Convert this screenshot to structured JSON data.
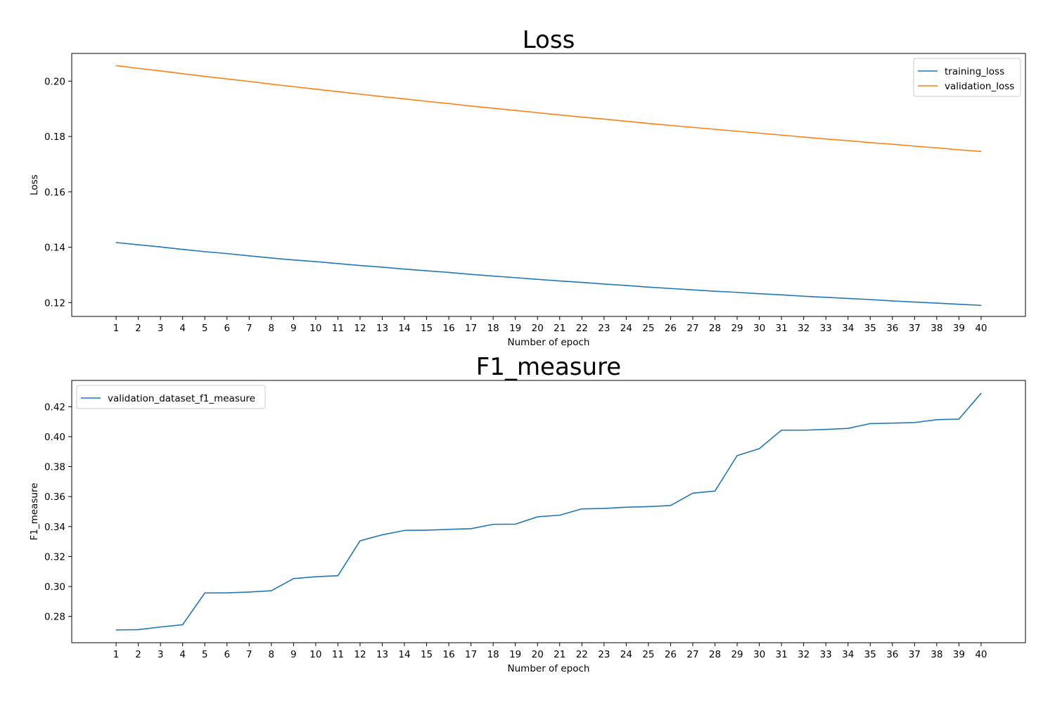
{
  "chart_data": [
    {
      "type": "line",
      "title": "Loss",
      "xlabel": "Number of epoch",
      "ylabel": "Loss",
      "x": [
        1,
        2,
        3,
        4,
        5,
        6,
        7,
        8,
        9,
        10,
        11,
        12,
        13,
        14,
        15,
        16,
        17,
        18,
        19,
        20,
        21,
        22,
        23,
        24,
        25,
        26,
        27,
        28,
        29,
        30,
        31,
        32,
        33,
        34,
        35,
        36,
        37,
        38,
        39,
        40
      ],
      "xlim": [
        -1.0,
        42.0
      ],
      "ylim": [
        0.115,
        0.21
      ],
      "yticks": [
        0.12,
        0.14,
        0.16,
        0.18,
        0.2
      ],
      "ytick_labels": [
        "0.12",
        "0.14",
        "0.16",
        "0.18",
        "0.20"
      ],
      "grid": false,
      "legend_position": "top-right",
      "series": [
        {
          "name": "training_loss",
          "color": "#1f77b4",
          "values": [
            0.1417,
            0.1409,
            0.1401,
            0.1392,
            0.1384,
            0.1377,
            0.1369,
            0.1361,
            0.1354,
            0.1348,
            0.1341,
            0.1334,
            0.1328,
            0.1321,
            0.1315,
            0.1309,
            0.1302,
            0.1296,
            0.129,
            0.1284,
            0.1278,
            0.1273,
            0.1267,
            0.1262,
            0.1256,
            0.1251,
            0.1246,
            0.1241,
            0.1237,
            0.1232,
            0.1228,
            0.1223,
            0.1219,
            0.1215,
            0.1211,
            0.1206,
            0.1202,
            0.1198,
            0.1194,
            0.119
          ]
        },
        {
          "name": "validation_loss",
          "color": "#ff7f0e",
          "values": [
            0.2056,
            0.2046,
            0.2037,
            0.2027,
            0.2017,
            0.2008,
            0.1999,
            0.1989,
            0.198,
            0.1971,
            0.1962,
            0.1953,
            0.1944,
            0.1936,
            0.1927,
            0.1919,
            0.191,
            0.1902,
            0.1894,
            0.1886,
            0.1878,
            0.187,
            0.1863,
            0.1855,
            0.1847,
            0.184,
            0.1833,
            0.1826,
            0.1819,
            0.1812,
            0.1805,
            0.1798,
            0.1791,
            0.1785,
            0.1778,
            0.1772,
            0.1765,
            0.1759,
            0.1752,
            0.1746
          ]
        }
      ]
    },
    {
      "type": "line",
      "title": "F1_measure",
      "xlabel": "Number of epoch",
      "ylabel": "F1_measure",
      "x": [
        1,
        2,
        3,
        4,
        5,
        6,
        7,
        8,
        9,
        10,
        11,
        12,
        13,
        14,
        15,
        16,
        17,
        18,
        19,
        20,
        21,
        22,
        23,
        24,
        25,
        26,
        27,
        28,
        29,
        30,
        31,
        32,
        33,
        34,
        35,
        36,
        37,
        38,
        39,
        40
      ],
      "xlim": [
        -1.0,
        42.0
      ],
      "ylim": [
        0.2625,
        0.4375
      ],
      "yticks": [
        0.28,
        0.3,
        0.32,
        0.34,
        0.36,
        0.38,
        0.4,
        0.42
      ],
      "ytick_labels": [
        "0.28",
        "0.30",
        "0.32",
        "0.34",
        "0.36",
        "0.38",
        "0.40",
        "0.42"
      ],
      "grid": false,
      "legend_position": "top-left",
      "series": [
        {
          "name": "validation_dataset_f1_measure",
          "color": "#1f77b4",
          "values": [
            0.271,
            0.2712,
            0.273,
            0.2745,
            0.2957,
            0.2958,
            0.2963,
            0.2972,
            0.3053,
            0.3065,
            0.3072,
            0.3305,
            0.3345,
            0.3374,
            0.3376,
            0.3381,
            0.3386,
            0.3415,
            0.3416,
            0.3465,
            0.3476,
            0.3518,
            0.3521,
            0.3529,
            0.3533,
            0.354,
            0.3623,
            0.3637,
            0.3873,
            0.392,
            0.4043,
            0.4043,
            0.4048,
            0.4055,
            0.4087,
            0.409,
            0.4094,
            0.4113,
            0.4117,
            0.4289
          ]
        }
      ]
    }
  ]
}
